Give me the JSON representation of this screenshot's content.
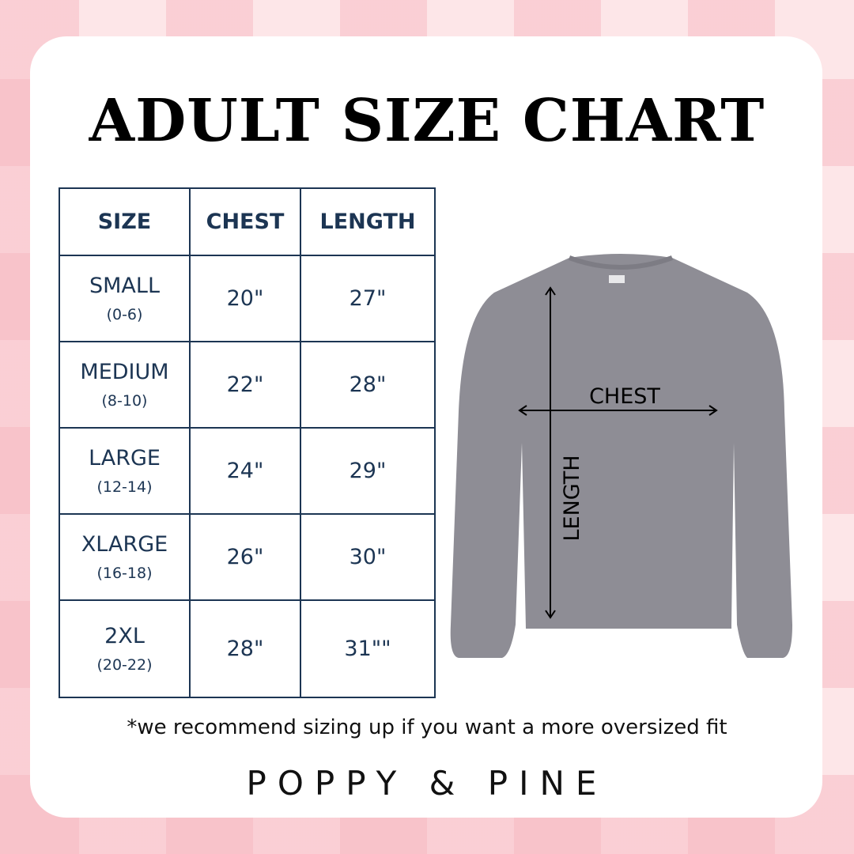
{
  "title": "ADULT SIZE CHART",
  "table": {
    "headers": [
      "SIZE",
      "CHEST",
      "LENGTH"
    ],
    "rows": [
      {
        "size": "SMALL",
        "range": "(0-6)",
        "chest": "20\"",
        "length": "27\""
      },
      {
        "size": "MEDIUM",
        "range": "(8-10)",
        "chest": "22\"",
        "length": "28\""
      },
      {
        "size": "LARGE",
        "range": "(12-14)",
        "chest": "24\"",
        "length": "29\""
      },
      {
        "size": "XLARGE",
        "range": "(16-18)",
        "chest": "26\"",
        "length": "30\""
      },
      {
        "size": "2XL",
        "range": "(20-22)",
        "chest": "28\"",
        "length": "31\"\""
      }
    ]
  },
  "diagram": {
    "chest_label": "CHEST",
    "length_label": "LENGTH",
    "garment_color": "#8e8d95"
  },
  "note": "*we recommend sizing up if you want a more oversized fit",
  "brand": "POPPY & PINE",
  "colors": {
    "navy": "#1c3553",
    "background_pink": "#f6b4be"
  }
}
